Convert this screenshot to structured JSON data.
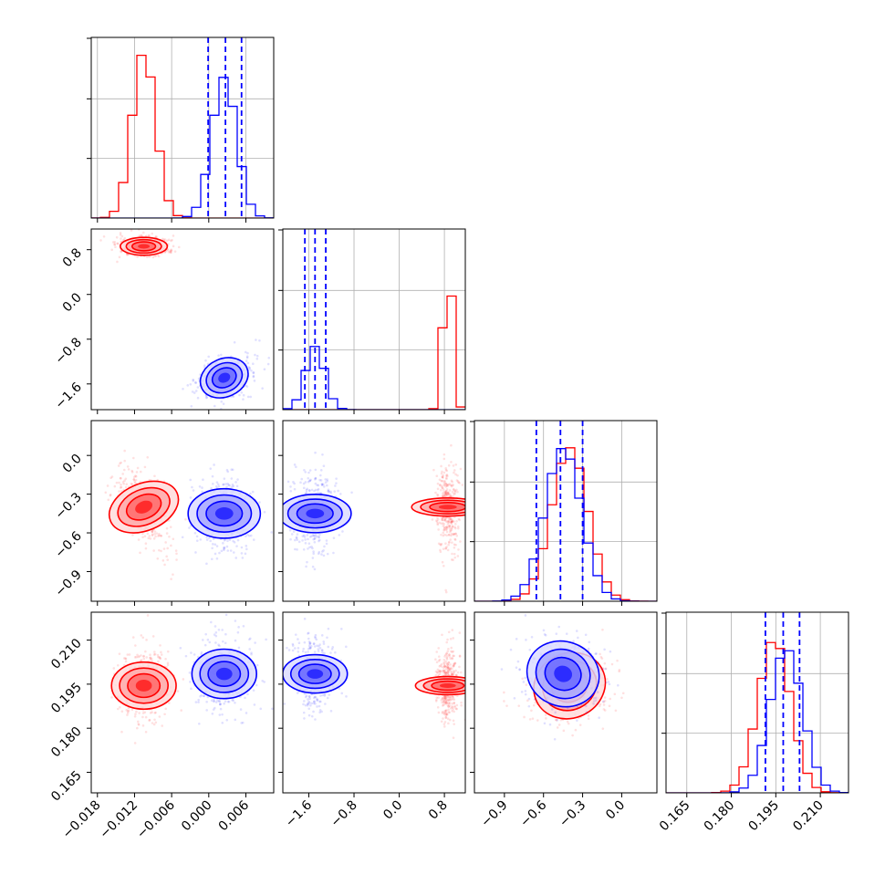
{
  "chart_data": {
    "type": "corner",
    "parameters": [
      {
        "ticks": [
          -0.018,
          -0.012,
          -0.006,
          0.0,
          0.006
        ],
        "tick_labels": [
          "−0.018",
          "−0.012",
          "−0.006",
          "0.000",
          "0.006"
        ],
        "range": [
          -0.019,
          0.0105
        ]
      },
      {
        "ticks": [
          -1.6,
          -0.8,
          0.0,
          0.8
        ],
        "tick_labels": [
          "−1.6",
          "−0.8",
          "0.0",
          "0.8"
        ],
        "range": [
          -2.06,
          1.17
        ]
      },
      {
        "ticks": [
          -0.9,
          -0.6,
          -0.3,
          0.0
        ],
        "tick_labels": [
          "−0.9",
          "−0.6",
          "−0.3",
          "0.0"
        ],
        "range": [
          -1.13,
          0.27
        ]
      },
      {
        "ticks": [
          0.165,
          0.18,
          0.195,
          0.21
        ],
        "tick_labels": [
          "0.165",
          "0.180",
          "0.195",
          "0.210"
        ],
        "range": [
          0.158,
          0.2195
        ]
      }
    ],
    "series": [
      {
        "color": "#ff0000",
        "mean": [
          -0.0105,
          0.86,
          -0.4,
          0.1945
        ],
        "std": [
          0.0019,
          0.08,
          0.14,
          0.0055
        ],
        "corr": {
          "0_2": -0.45,
          "2_3": 0.15
        },
        "hist_peak_ratio": [
          0.92,
          0.9,
          0.85,
          0.85
        ]
      },
      {
        "color": "#0000ff",
        "mean": [
          0.0025,
          -1.49,
          -0.45,
          0.1985
        ],
        "std": [
          0.002,
          0.17,
          0.14,
          0.0055
        ],
        "corr": {
          "0_1": 0.3,
          "2_3": -0.1
        },
        "hist_peak_ratio": [
          0.78,
          0.35,
          0.85,
          0.8
        ]
      }
    ],
    "quantiles": [
      [
        -0.0001,
        0.0027,
        0.0053
      ],
      [
        -1.67,
        -1.49,
        -1.3
      ],
      [
        -0.655,
        -0.47,
        -0.3
      ],
      [
        0.1915,
        0.1975,
        0.203
      ]
    ],
    "quantile_color": "#0000ff",
    "grid": true
  }
}
